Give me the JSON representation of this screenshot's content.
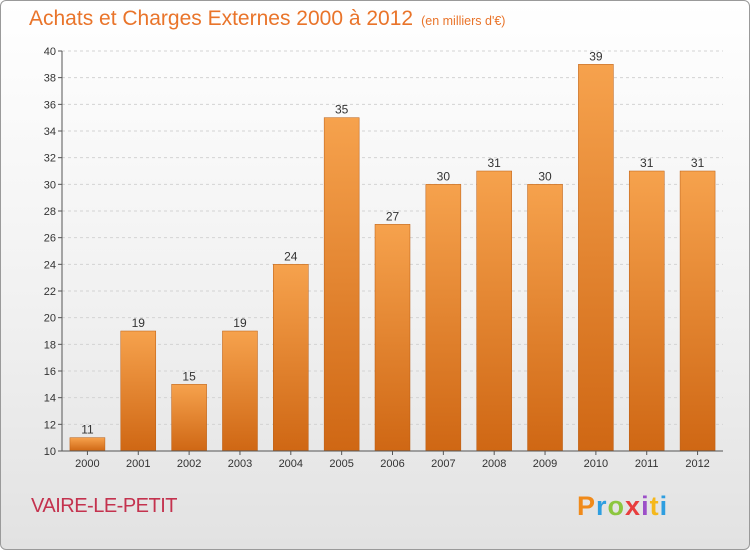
{
  "header": {
    "title": "Achats et Charges Externes 2000 à 2012",
    "subtitle": "(en milliers d'€)"
  },
  "footer": {
    "place": "VAIRE-LE-PETIT",
    "logo_letters": [
      "P",
      "r",
      "o",
      "x",
      "i",
      "t",
      "i"
    ],
    "logo_colors": [
      "#f08a1a",
      "#2e9ee0",
      "#8cc63f",
      "#e83e3e",
      "#9c4fc8",
      "#f5b81c",
      "#2e9ee0"
    ]
  },
  "chart_data": {
    "type": "bar",
    "title": "Achats et Charges Externes 2000 à 2012",
    "subtitle": "(en milliers d'€)",
    "categories": [
      "2000",
      "2001",
      "2002",
      "2003",
      "2004",
      "2005",
      "2006",
      "2007",
      "2008",
      "2009",
      "2010",
      "2011",
      "2012"
    ],
    "values": [
      11,
      19,
      15,
      19,
      24,
      35,
      27,
      30,
      31,
      30,
      39,
      31,
      31
    ],
    "ylim": [
      10,
      40
    ],
    "yticks": [
      10,
      12,
      14,
      16,
      18,
      20,
      22,
      24,
      26,
      28,
      30,
      32,
      34,
      36,
      38,
      40
    ],
    "grid": true,
    "colors": {
      "bar_light": "#f6a24d",
      "bar_dark": "#cf6714",
      "grid": "#d3d3d3",
      "axis": "#555555",
      "text": "#333333"
    }
  }
}
